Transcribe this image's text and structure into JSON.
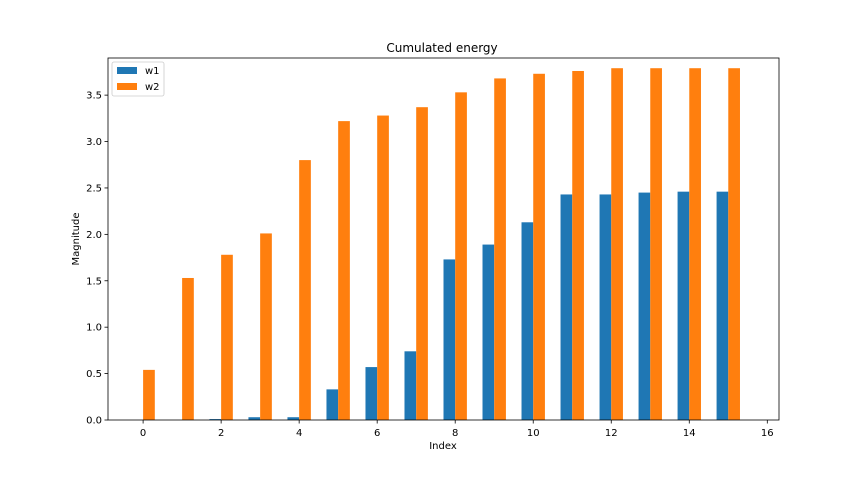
{
  "chart_data": {
    "type": "bar",
    "title": "Cumulated energy",
    "xlabel": "Index",
    "ylabel": "Magnitude",
    "xlim": [
      -0.9,
      16.3
    ],
    "ylim": [
      0,
      3.9
    ],
    "xticks": [
      0,
      2,
      4,
      6,
      8,
      10,
      12,
      14,
      16
    ],
    "yticks": [
      0.0,
      0.5,
      1.0,
      1.5,
      2.0,
      2.5,
      3.0,
      3.5
    ],
    "x": [
      0,
      1,
      2,
      3,
      4,
      5,
      6,
      7,
      8,
      9,
      10,
      11,
      12,
      13,
      14,
      15
    ],
    "bar_width": 0.3,
    "legend_position": "top-left",
    "grid": false,
    "series": [
      {
        "name": "w1",
        "color": "#1f77b4",
        "offset": -0.15,
        "values": [
          0.0,
          0.0,
          0.01,
          0.03,
          0.03,
          0.33,
          0.57,
          0.74,
          1.73,
          1.89,
          2.13,
          2.43,
          2.43,
          2.45,
          2.46,
          2.46
        ]
      },
      {
        "name": "w2",
        "color": "#ff7f0e",
        "offset": 0.15,
        "values": [
          0.54,
          1.53,
          1.78,
          2.01,
          2.8,
          3.22,
          3.28,
          3.37,
          3.53,
          3.68,
          3.73,
          3.76,
          3.79,
          3.79,
          3.79,
          3.79
        ]
      }
    ]
  }
}
